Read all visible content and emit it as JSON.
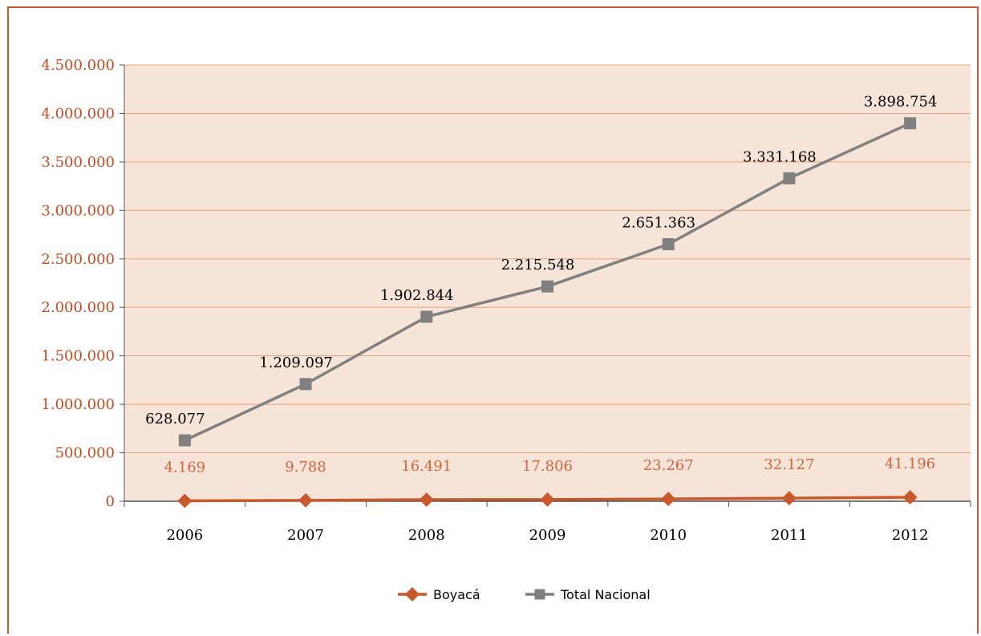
{
  "chart_data": {
    "type": "line",
    "categories": [
      "2006",
      "2007",
      "2008",
      "2009",
      "2010",
      "2011",
      "2012"
    ],
    "ylim": [
      0,
      4500000
    ],
    "y_ticks": [
      0,
      500000,
      1000000,
      1500000,
      2000000,
      2500000,
      3000000,
      3500000,
      4000000,
      4500000
    ],
    "y_tick_labels": [
      "0",
      "500.000",
      "1.000.000",
      "1.500.000",
      "2.000.000",
      "2.500.000",
      "3.000.000",
      "3.500.000",
      "4.000.000",
      "4.500.000"
    ],
    "grid": true,
    "legend_position": "bottom",
    "series": [
      {
        "name": "Boyacá",
        "marker": "diamond",
        "color": "#c8592d",
        "values": [
          4169,
          9788,
          16491,
          17806,
          23267,
          32127,
          41196
        ],
        "labels": [
          "4.169",
          "9.788",
          "16.491",
          "17.806",
          "23.267",
          "32.127",
          "41.196"
        ]
      },
      {
        "name": "Total Nacional",
        "marker": "square",
        "color": "#808080",
        "values": [
          628077,
          1209097,
          1902844,
          2215548,
          2651363,
          3331168,
          3898754
        ],
        "labels": [
          "628.077",
          "1.209.097",
          "1.902.844",
          "2.215.548",
          "2.651.363",
          "3.331.168",
          "3.898.754"
        ]
      }
    ],
    "colors": {
      "plot_background": "#f6e4d8",
      "gridline": "#e8a27e",
      "axis_text": "#c24c22",
      "frame": "#c8592d"
    }
  }
}
